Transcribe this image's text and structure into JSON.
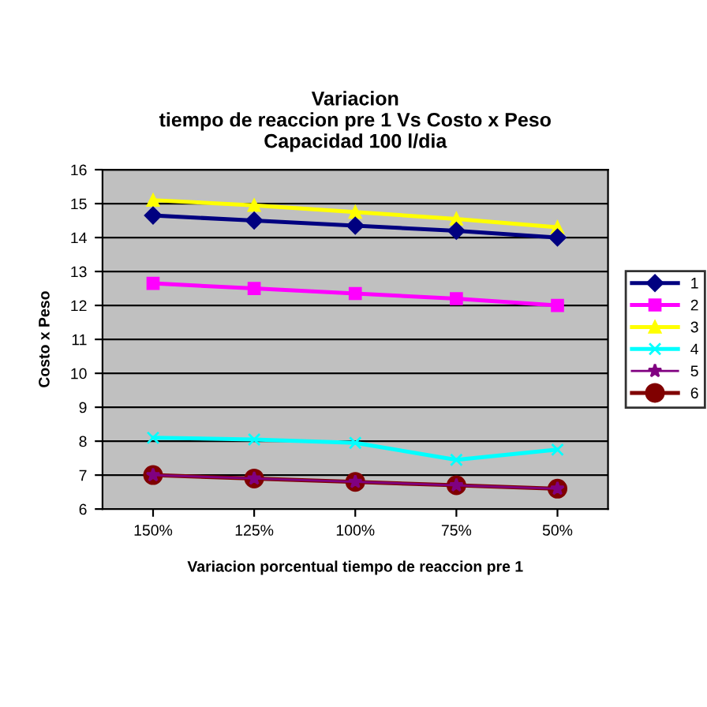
{
  "chart_data": {
    "type": "line",
    "title": "Variacion\ntiempo de reaccion pre 1 Vs Costo x Peso\nCapacidad 100 l/dia",
    "xlabel": "Variacion porcentual tiempo de reaccion pre 1",
    "ylabel": "Costo x Peso",
    "categories": [
      "150%",
      "125%",
      "100%",
      "75%",
      "50%"
    ],
    "series": [
      {
        "name": "1",
        "color": "#000080",
        "marker": "diamond",
        "values": [
          14.65,
          14.5,
          14.35,
          14.2,
          14.0
        ]
      },
      {
        "name": "2",
        "color": "#ff00ff",
        "marker": "square",
        "values": [
          12.65,
          12.5,
          12.35,
          12.2,
          12.0
        ]
      },
      {
        "name": "3",
        "color": "#ffff00",
        "marker": "triangle",
        "values": [
          15.1,
          14.95,
          14.75,
          14.55,
          14.3
        ]
      },
      {
        "name": "4",
        "color": "#00ffff",
        "marker": "cross",
        "values": [
          8.1,
          8.05,
          7.95,
          7.45,
          7.75
        ]
      },
      {
        "name": "5",
        "color": "#800080",
        "marker": "star",
        "values": [
          7.0,
          6.9,
          6.8,
          6.7,
          6.6
        ]
      },
      {
        "name": "6",
        "color": "#800000",
        "marker": "circle",
        "values": [
          7.0,
          6.9,
          6.8,
          6.7,
          6.6
        ]
      }
    ],
    "ylim": [
      6,
      16
    ],
    "yticks": [
      6,
      7,
      8,
      9,
      10,
      11,
      12,
      13,
      14,
      15,
      16
    ],
    "grid": "y",
    "legend": "right"
  }
}
